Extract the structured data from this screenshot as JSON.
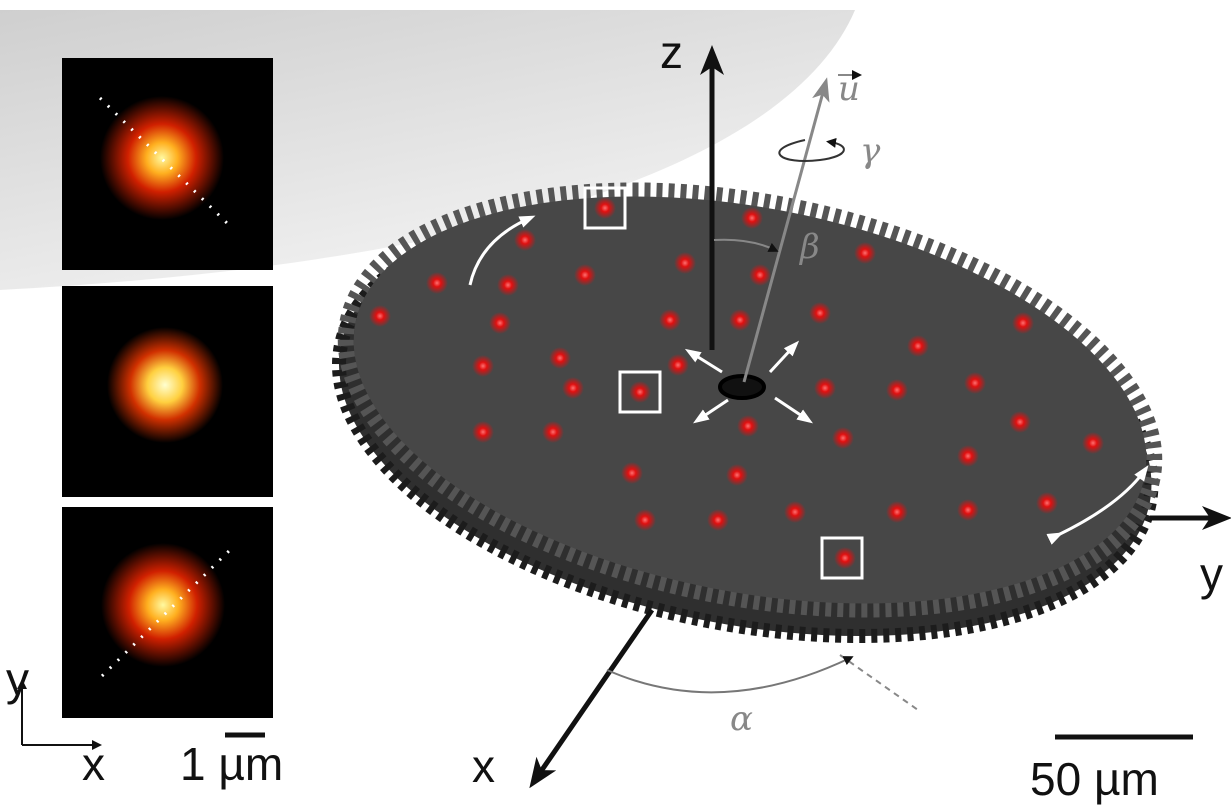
{
  "axes": {
    "z": "z",
    "y": "y",
    "x": "x",
    "u": "u"
  },
  "angles": {
    "alpha": "α",
    "beta": "β",
    "gamma": "γ"
  },
  "scale_bars": {
    "main": "50 µm",
    "inset": "1 µm"
  },
  "inset_axes": {
    "x": "x",
    "y": "y"
  }
}
